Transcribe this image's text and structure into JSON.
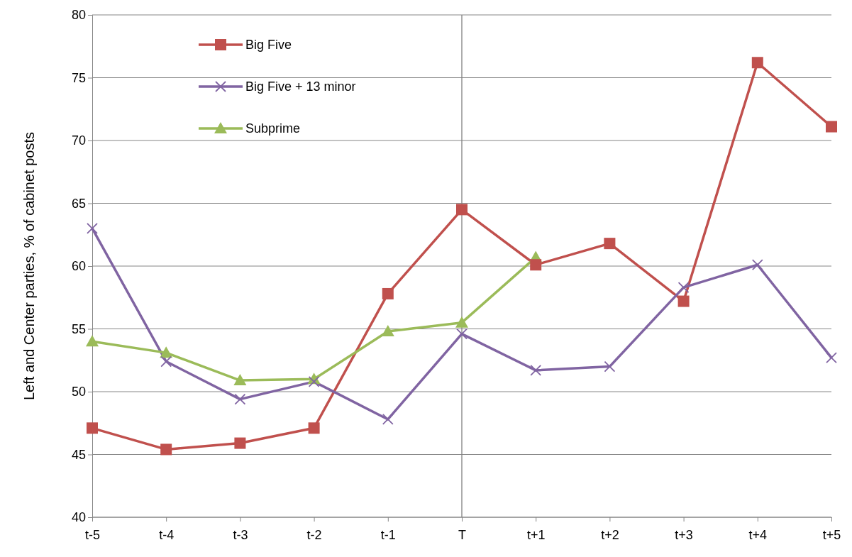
{
  "chart_data": {
    "type": "line",
    "ylabel": "Left and Center  parties, %  of cabinet posts",
    "categories": [
      "t-5",
      "t-4",
      "t-3",
      "t-2",
      "t-1",
      "T",
      "t+1",
      "t+2",
      "t+3",
      "t+4",
      "t+5"
    ],
    "series": [
      {
        "name": "Big Five",
        "color": "#c0504d",
        "marker": "square",
        "values": [
          47.1,
          45.4,
          45.9,
          47.1,
          57.8,
          64.5,
          60.1,
          61.8,
          57.2,
          76.2,
          71.1
        ]
      },
      {
        "name": "Big Five + 13 minor",
        "color": "#8064a2",
        "marker": "cross",
        "values": [
          63.0,
          52.4,
          49.4,
          50.8,
          47.8,
          54.6,
          51.7,
          52.0,
          58.3,
          60.1,
          52.7
        ]
      },
      {
        "name": "Subprime",
        "color": "#9bbb59",
        "marker": "triangle",
        "values": [
          54.0,
          53.1,
          50.9,
          51.0,
          54.8,
          55.5,
          60.7,
          null,
          null,
          null,
          null
        ]
      }
    ],
    "ylim": [
      40,
      80
    ],
    "yticks": [
      40,
      45,
      50,
      55,
      60,
      65,
      70,
      75,
      80
    ],
    "grid": "y",
    "legend": "top left",
    "ref_lines": [
      {
        "axis": "x",
        "value": "T",
        "color": "#808080"
      }
    ]
  }
}
